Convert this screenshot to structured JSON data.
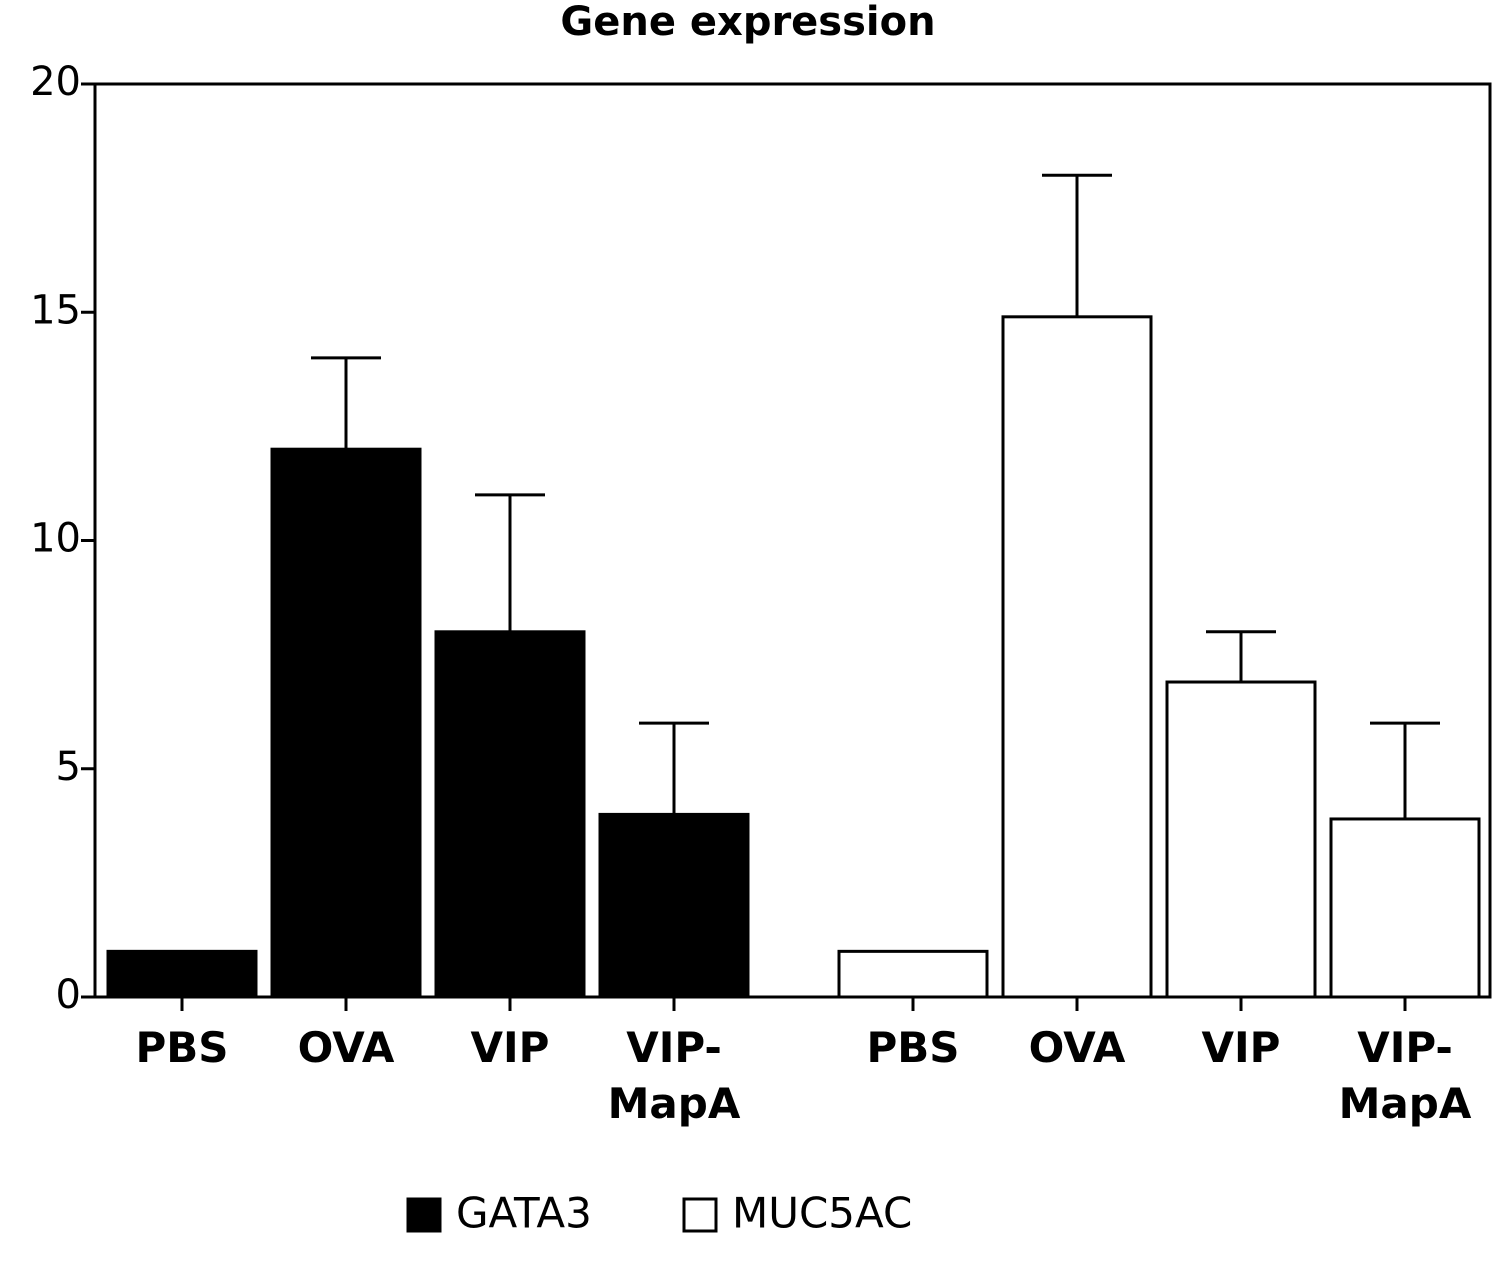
{
  "chart_data": {
    "type": "bar",
    "title": "Gene expression",
    "categories": [
      "PBS",
      "OVA",
      "VIP",
      "VIP-\nMapA"
    ],
    "series": [
      {
        "name": "GATA3",
        "color": "#000000",
        "values": [
          1,
          12,
          8,
          4
        ],
        "errors": [
          null,
          2,
          3,
          2
        ]
      },
      {
        "name": "MUC5AC",
        "color": "#ffffff",
        "values": [
          1,
          14.9,
          6.9,
          3.9
        ],
        "errors": [
          null,
          3.1,
          1.1,
          2.1
        ]
      }
    ],
    "ylim": [
      0,
      20
    ],
    "yticks": [
      0,
      5,
      10,
      15,
      20
    ]
  }
}
